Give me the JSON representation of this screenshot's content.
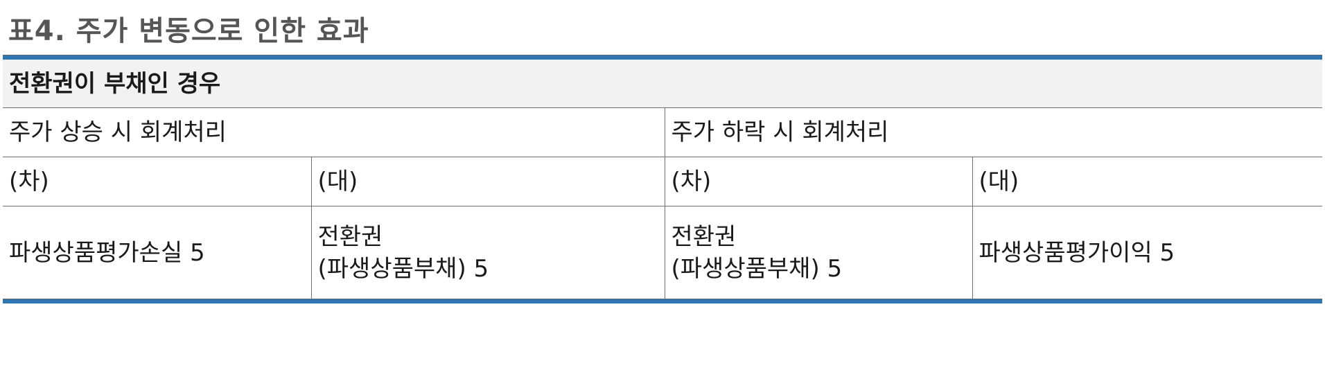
{
  "document": {
    "title": "표4. 주가 변동으로 인한 효과"
  },
  "table": {
    "section_header": "전환권이 부채인 경우",
    "scenarios": {
      "rise": "주가 상승 시 회계처리",
      "fall": "주가 하락 시 회계처리"
    },
    "rise": {
      "debit_label": "(차)",
      "credit_label": "(대)",
      "debit_entry": "파생상품평가손실 5",
      "credit_entry_line1": "전환권",
      "credit_entry_line2": "(파생상품부채) 5"
    },
    "fall": {
      "debit_label": "(차)",
      "credit_label": "(대)",
      "debit_entry_line1": "전환권",
      "debit_entry_line2": "(파생상품부채) 5",
      "credit_entry": "파생상품평가이익 5"
    }
  },
  "colors": {
    "accent_rule": "#2e75b6",
    "section_header_bg": "#f2f2f2",
    "title_text": "#555555"
  }
}
